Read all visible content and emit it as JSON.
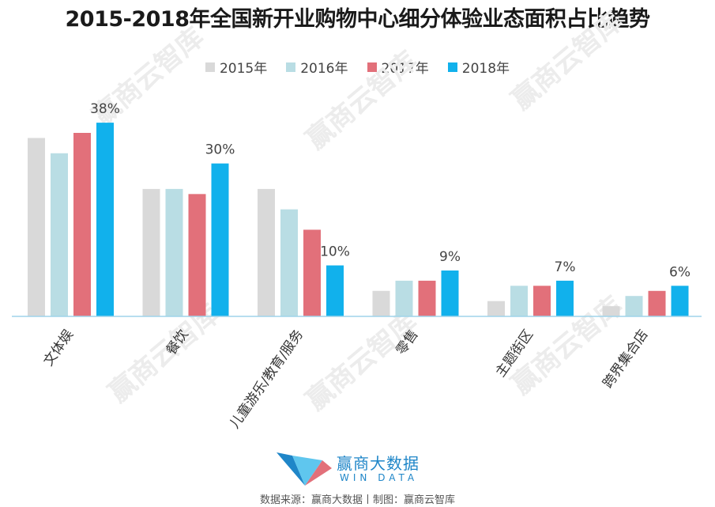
{
  "title": "2015-2018年全国新开业购物中心细分体验业态面积占比趋势",
  "legend": [
    {
      "label": "2015年",
      "color": "#d9d9d9"
    },
    {
      "label": "2016年",
      "color": "#b9dde4"
    },
    {
      "label": "2017年",
      "color": "#e2707a"
    },
    {
      "label": "2018年",
      "color": "#11b1ec"
    }
  ],
  "chart_data": {
    "type": "bar",
    "categories": [
      "文体娱",
      "餐饮",
      "儿童游乐/教育/服务",
      "零售",
      "主题街区",
      "跨界集合店"
    ],
    "series": [
      {
        "name": "2015年",
        "color": "#d9d9d9",
        "values": [
          35,
          25,
          25,
          5,
          3,
          2
        ]
      },
      {
        "name": "2016年",
        "color": "#b9dde4",
        "values": [
          32,
          25,
          21,
          7,
          6,
          4
        ]
      },
      {
        "name": "2017年",
        "color": "#e2707a",
        "values": [
          36,
          24,
          17,
          7,
          6,
          5
        ]
      },
      {
        "name": "2018年",
        "color": "#11b1ec",
        "values": [
          38,
          30,
          10,
          9,
          7,
          6
        ]
      }
    ],
    "data_labels": [
      "38%",
      "30%",
      "10%",
      "9%",
      "7%",
      "6%"
    ],
    "ylim": [
      0,
      45
    ],
    "grid": false
  },
  "watermark": "赢商云智库",
  "logo": {
    "name": "赢商大数据",
    "sub": "WIN DATA"
  },
  "source": "数据来源：赢商大数据丨制图：赢商云智库"
}
